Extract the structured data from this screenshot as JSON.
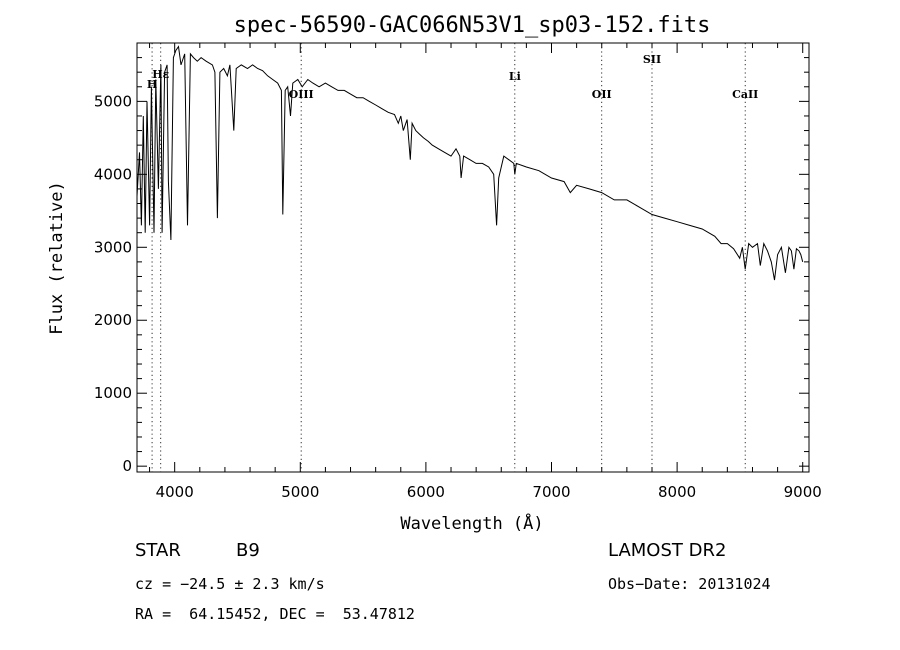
{
  "chart_data": {
    "type": "line",
    "title": "spec-56590-GAC066N53V1_sp03-152.fits",
    "xlabel": "Wavelength (Å)",
    "ylabel": "Flux (relative)",
    "xlim": [
      3700,
      9050
    ],
    "ylim": [
      -80,
      5800
    ],
    "xticks": [
      4000,
      5000,
      6000,
      7000,
      8000,
      9000
    ],
    "yticks": [
      0,
      1000,
      2000,
      3000,
      4000,
      5000
    ],
    "grid": false,
    "series": [
      {
        "points": [
          [
            3700,
            3700
          ],
          [
            3720,
            4300
          ],
          [
            3735,
            3300
          ],
          [
            3750,
            4800
          ],
          [
            3765,
            3200
          ],
          [
            3780,
            5000
          ],
          [
            3800,
            3300
          ],
          [
            3815,
            5200
          ],
          [
            3835,
            3200
          ],
          [
            3850,
            5300
          ],
          [
            3870,
            3800
          ],
          [
            3890,
            5500
          ],
          [
            3900,
            3200
          ],
          [
            3920,
            5400
          ],
          [
            3940,
            5500
          ],
          [
            3950,
            3900
          ],
          [
            3970,
            3100
          ],
          [
            3990,
            5600
          ],
          [
            4010,
            5700
          ],
          [
            4030,
            5750
          ],
          [
            4050,
            5500
          ],
          [
            4080,
            5650
          ],
          [
            4102,
            3300
          ],
          [
            4125,
            5650
          ],
          [
            4150,
            5600
          ],
          [
            4180,
            5550
          ],
          [
            4210,
            5600
          ],
          [
            4250,
            5550
          ],
          [
            4300,
            5500
          ],
          [
            4320,
            5400
          ],
          [
            4340,
            3400
          ],
          [
            4360,
            5400
          ],
          [
            4390,
            5450
          ],
          [
            4420,
            5350
          ],
          [
            4440,
            5500
          ],
          [
            4471,
            4600
          ],
          [
            4490,
            5450
          ],
          [
            4530,
            5500
          ],
          [
            4580,
            5450
          ],
          [
            4620,
            5500
          ],
          [
            4660,
            5450
          ],
          [
            4700,
            5420
          ],
          [
            4740,
            5350
          ],
          [
            4780,
            5300
          ],
          [
            4820,
            5250
          ],
          [
            4850,
            5150
          ],
          [
            4861,
            3450
          ],
          [
            4880,
            5150
          ],
          [
            4900,
            5200
          ],
          [
            4922,
            4800
          ],
          [
            4940,
            5250
          ],
          [
            4980,
            5300
          ],
          [
            5015,
            5200
          ],
          [
            5060,
            5300
          ],
          [
            5100,
            5250
          ],
          [
            5150,
            5200
          ],
          [
            5200,
            5250
          ],
          [
            5250,
            5200
          ],
          [
            5300,
            5150
          ],
          [
            5350,
            5150
          ],
          [
            5400,
            5100
          ],
          [
            5450,
            5050
          ],
          [
            5500,
            5050
          ],
          [
            5550,
            5000
          ],
          [
            5600,
            4950
          ],
          [
            5650,
            4900
          ],
          [
            5700,
            4850
          ],
          [
            5750,
            4820
          ],
          [
            5780,
            4700
          ],
          [
            5800,
            4800
          ],
          [
            5820,
            4600
          ],
          [
            5850,
            4750
          ],
          [
            5876,
            4200
          ],
          [
            5890,
            4700
          ],
          [
            5920,
            4600
          ],
          [
            5950,
            4550
          ],
          [
            5980,
            4500
          ],
          [
            6020,
            4450
          ],
          [
            6050,
            4400
          ],
          [
            6100,
            4350
          ],
          [
            6150,
            4300
          ],
          [
            6200,
            4250
          ],
          [
            6240,
            4350
          ],
          [
            6270,
            4250
          ],
          [
            6280,
            3950
          ],
          [
            6300,
            4250
          ],
          [
            6350,
            4200
          ],
          [
            6400,
            4150
          ],
          [
            6450,
            4150
          ],
          [
            6500,
            4100
          ],
          [
            6540,
            4000
          ],
          [
            6563,
            3300
          ],
          [
            6580,
            3950
          ],
          [
            6620,
            4250
          ],
          [
            6660,
            4200
          ],
          [
            6700,
            4150
          ],
          [
            6708,
            4000
          ],
          [
            6720,
            4150
          ],
          [
            6800,
            4100
          ],
          [
            6900,
            4050
          ],
          [
            7000,
            3950
          ],
          [
            7100,
            3900
          ],
          [
            7150,
            3750
          ],
          [
            7200,
            3850
          ],
          [
            7300,
            3800
          ],
          [
            7400,
            3750
          ],
          [
            7500,
            3650
          ],
          [
            7600,
            3650
          ],
          [
            7700,
            3550
          ],
          [
            7800,
            3450
          ],
          [
            7900,
            3400
          ],
          [
            8000,
            3350
          ],
          [
            8100,
            3300
          ],
          [
            8200,
            3250
          ],
          [
            8300,
            3150
          ],
          [
            8350,
            3050
          ],
          [
            8400,
            3050
          ],
          [
            8450,
            2980
          ],
          [
            8498,
            2850
          ],
          [
            8520,
            3000
          ],
          [
            8542,
            2700
          ],
          [
            8570,
            3050
          ],
          [
            8600,
            3000
          ],
          [
            8640,
            3050
          ],
          [
            8662,
            2750
          ],
          [
            8690,
            3050
          ],
          [
            8720,
            2950
          ],
          [
            8750,
            2800
          ],
          [
            8775,
            2550
          ],
          [
            8800,
            2900
          ],
          [
            8830,
            3000
          ],
          [
            8862,
            2650
          ],
          [
            8890,
            3000
          ],
          [
            8910,
            2950
          ],
          [
            8930,
            2700
          ],
          [
            8950,
            2980
          ],
          [
            8970,
            2950
          ],
          [
            8985,
            2900
          ],
          [
            9000,
            2800
          ]
        ]
      }
    ],
    "annotations": [
      {
        "label": "Hε",
        "x": 3889
      },
      {
        "label": "H",
        "x": 3820
      },
      {
        "label": "OIII",
        "x": 5007
      },
      {
        "label": "Li",
        "x": 6708
      },
      {
        "label": "OII",
        "x": 7400
      },
      {
        "label": "SII",
        "x": 7800
      },
      {
        "label": "CaII",
        "x": 8542
      }
    ]
  },
  "info": {
    "object_class": "STAR",
    "subclass": "B9",
    "survey": "LAMOST DR2",
    "cz": "cz = −24.5 ± 2.3 km/s",
    "obs_date": "Obs−Date: 20131024",
    "coords": "RA =  64.15452, DEC =  53.47812"
  }
}
